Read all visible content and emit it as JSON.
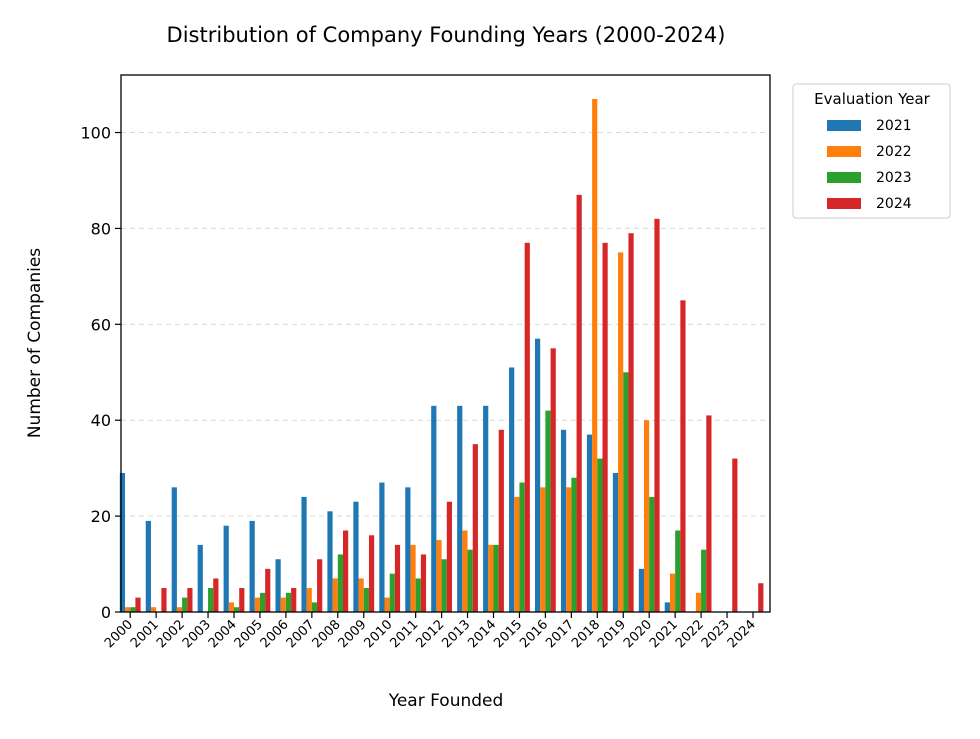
{
  "chart_data": {
    "type": "bar",
    "title": "Distribution of Company Founding Years (2000-2024)",
    "xlabel": "Year Founded",
    "ylabel": "Number of Companies",
    "ylim": [
      0,
      112
    ],
    "yticks": [
      0,
      20,
      40,
      60,
      80,
      100
    ],
    "grid": "y dashed",
    "legend_title": "Evaluation Year",
    "legend_placement": "outside top-right",
    "categories": [
      "2000",
      "2001",
      "2002",
      "2003",
      "2004",
      "2005",
      "2006",
      "2007",
      "2008",
      "2009",
      "2010",
      "2011",
      "2012",
      "2013",
      "2014",
      "2015",
      "2016",
      "2017",
      "2018",
      "2019",
      "2020",
      "2021",
      "2022",
      "2023",
      "2024"
    ],
    "series": [
      {
        "name": "2021",
        "color": "#1f77b4",
        "values": [
          29,
          19,
          26,
          14,
          18,
          19,
          11,
          24,
          21,
          23,
          27,
          26,
          43,
          43,
          43,
          51,
          57,
          38,
          37,
          29,
          9,
          2,
          0,
          0,
          0
        ]
      },
      {
        "name": "2022",
        "color": "#ff7f0e",
        "values": [
          1,
          1,
          1,
          0,
          2,
          3,
          3,
          5,
          7,
          7,
          3,
          14,
          15,
          17,
          14,
          24,
          26,
          26,
          107,
          75,
          40,
          8,
          4,
          0,
          0
        ]
      },
      {
        "name": "2023",
        "color": "#2ca02c",
        "values": [
          1,
          0,
          3,
          5,
          1,
          4,
          4,
          2,
          12,
          5,
          8,
          7,
          11,
          13,
          14,
          27,
          42,
          28,
          32,
          50,
          24,
          17,
          13,
          0,
          0
        ]
      },
      {
        "name": "2024",
        "color": "#d62728",
        "values": [
          3,
          5,
          5,
          7,
          5,
          9,
          5,
          11,
          17,
          16,
          14,
          12,
          23,
          35,
          38,
          77,
          55,
          87,
          77,
          79,
          82,
          65,
          41,
          32,
          6
        ]
      }
    ]
  }
}
